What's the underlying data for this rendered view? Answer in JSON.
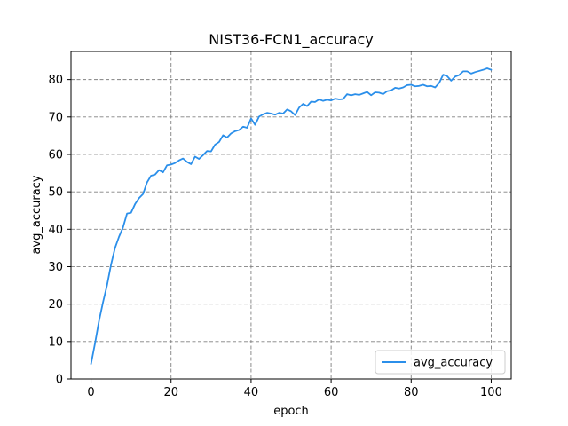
{
  "chart_data": {
    "type": "line",
    "title": "NIST36-FCN1_accuracy",
    "xlabel": "epoch",
    "ylabel": "avg_accuracy",
    "xlim": [
      -5,
      105
    ],
    "ylim": [
      0,
      87.5
    ],
    "xticks": [
      0,
      20,
      40,
      60,
      80,
      100
    ],
    "yticks": [
      0,
      10,
      20,
      30,
      40,
      50,
      60,
      70,
      80
    ],
    "grid": true,
    "grid_style": "dashed",
    "legend_position": "lower-right",
    "series": [
      {
        "name": "avg_accuracy",
        "color": "#2b8fea",
        "x": [
          0,
          1,
          2,
          3,
          4,
          5,
          6,
          7,
          8,
          9,
          10,
          11,
          12,
          13,
          14,
          15,
          16,
          17,
          18,
          19,
          20,
          21,
          22,
          23,
          24,
          25,
          26,
          27,
          28,
          29,
          30,
          31,
          32,
          33,
          34,
          35,
          36,
          37,
          38,
          39,
          40,
          41,
          42,
          43,
          44,
          45,
          46,
          47,
          48,
          49,
          50,
          51,
          52,
          53,
          54,
          55,
          56,
          57,
          58,
          59,
          60,
          61,
          62,
          63,
          64,
          65,
          66,
          67,
          68,
          69,
          70,
          71,
          72,
          73,
          74,
          75,
          76,
          77,
          78,
          79,
          80,
          81,
          82,
          83,
          84,
          85,
          86,
          87,
          88,
          89,
          90,
          91,
          92,
          93,
          94,
          95,
          96,
          97,
          98,
          99,
          100
        ],
        "y": [
          4,
          9.5,
          15.5,
          20.5,
          25,
          30.5,
          35,
          38,
          40.5,
          44.2,
          44.4,
          46.7,
          48.3,
          49.4,
          52.5,
          54.3,
          54.6,
          55.8,
          55.2,
          57.1,
          57.3,
          57.7,
          58.4,
          58.9,
          58,
          57.4,
          59.4,
          58.8,
          59.8,
          60.9,
          60.8,
          62.6,
          63.3,
          65.1,
          64.5,
          65.6,
          66.2,
          66.5,
          67.4,
          67.1,
          69.6,
          67.9,
          70.1,
          70.7,
          71.1,
          70.9,
          70.6,
          71.1,
          70.9,
          72,
          71.5,
          70.5,
          72.5,
          73.5,
          72.9,
          74.1,
          74,
          74.7,
          74.3,
          74.6,
          74.4,
          74.9,
          74.7,
          74.8,
          76.1,
          75.8,
          76.1,
          75.9,
          76.3,
          76.7,
          75.8,
          76.6,
          76.5,
          76.1,
          76.9,
          77.1,
          77.8,
          77.6,
          77.9,
          78.5,
          78.6,
          78.2,
          78.3,
          78.6,
          78.2,
          78.3,
          77.9,
          79.1,
          81.3,
          80.9,
          79.7,
          80.8,
          81.2,
          82.2,
          82.2,
          81.6,
          82,
          82.3,
          82.6,
          83,
          82.6
        ]
      }
    ]
  }
}
